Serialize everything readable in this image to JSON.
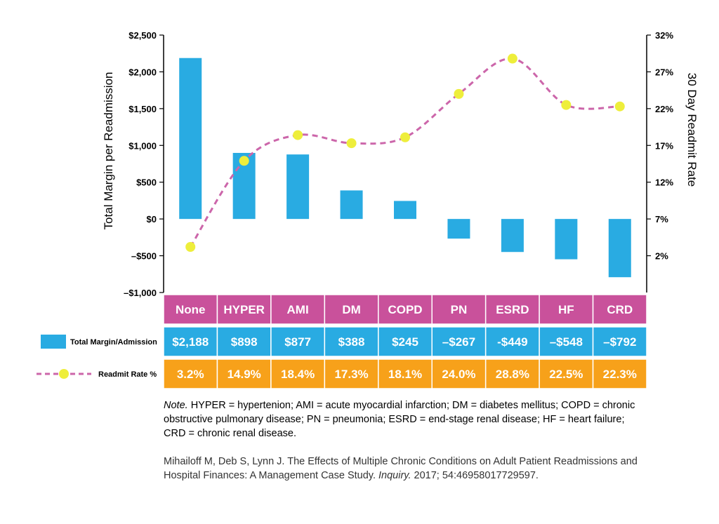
{
  "chart_data": {
    "type": "bar+line",
    "categories": [
      "None",
      "HYPER",
      "AMI",
      "DM",
      "COPD",
      "PN",
      "ESRD",
      "HF",
      "CRD"
    ],
    "series": [
      {
        "name": "Total Margin/Admission",
        "type": "bar",
        "axis": "left",
        "color": "#29abe2",
        "values": [
          2188,
          898,
          877,
          388,
          245,
          -267,
          -449,
          -548,
          -792
        ],
        "labels": [
          "$2,188",
          "$898",
          "$877",
          "$388",
          "$245",
          "–$267",
          "-$449",
          "–$548",
          "–$792"
        ]
      },
      {
        "name": "Readmit Rate %",
        "type": "line",
        "axis": "right",
        "color": "#cc66aa",
        "marker_color": "#eeee3b",
        "values": [
          3.2,
          14.9,
          18.4,
          17.3,
          18.1,
          24.0,
          28.8,
          22.5,
          22.3
        ],
        "labels": [
          "3.2%",
          "14.9%",
          "18.4%",
          "17.3%",
          "18.1%",
          "24.0%",
          "28.8%",
          "22.5%",
          "22.3%"
        ]
      }
    ],
    "ylabel_left": "Total Margin per Readmission",
    "ylabel_right": "30 Day Readmit Rate",
    "ylim_left": [
      -1000,
      2500
    ],
    "ylim_right": [
      -3,
      32
    ],
    "yticks_left": [
      2500,
      2000,
      1500,
      1000,
      500,
      0,
      -500,
      -1000
    ],
    "yticks_left_labels": [
      "$2,500",
      "$2,000",
      "$1,500",
      "$1,000",
      "$500",
      "$0",
      "–$500",
      "–$1,000"
    ],
    "yticks_right": [
      32,
      27,
      22,
      17,
      12,
      7,
      2
    ],
    "yticks_right_labels": [
      "32%",
      "27%",
      "22%",
      "17%",
      "12%",
      "7%",
      "2%"
    ],
    "legend": [
      "Total Margin/Admission",
      "Readmit Rate %"
    ],
    "colors": {
      "category_row": "#c9519b",
      "margin_row": "#29abe2",
      "rate_row": "#f7a11a"
    }
  },
  "note": {
    "label": "Note.",
    "text": "HYPER = hypertenion; AMI = acute myocardial infarction; DM = diabetes mellitus; COPD = chronic obstructive pulmonary disease; PN = pneumonia; ESRD = end-stage renal disease; HF = heart failure; CRD = chronic renal disease."
  },
  "citation": {
    "before": "Mihailoff M, Deb S, Lynn J. The Effects of Multiple Chronic Conditions on Adult Patient Readmissions and Hospital Finances: A Management Case Study.",
    "journal": "Inquiry.",
    "after": "2017; 54:46958017729597."
  }
}
